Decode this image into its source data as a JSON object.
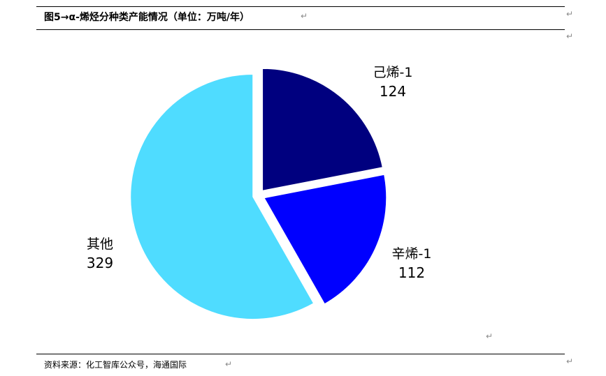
{
  "figure": {
    "title": "图5→α-烯烃分种类产能情况（单位：万吨/年）",
    "source": "资料来源：化工智库公众号，海通国际",
    "para_mark": "↵"
  },
  "chart_data": {
    "type": "pie",
    "title": "",
    "slices": [
      {
        "label": "己烯-1",
        "value": 124,
        "color": "#00007f"
      },
      {
        "label": "辛烯-1",
        "value": 112,
        "color": "#0000ff"
      },
      {
        "label": "其他",
        "value": 329,
        "color": "#4fdcff"
      }
    ]
  }
}
